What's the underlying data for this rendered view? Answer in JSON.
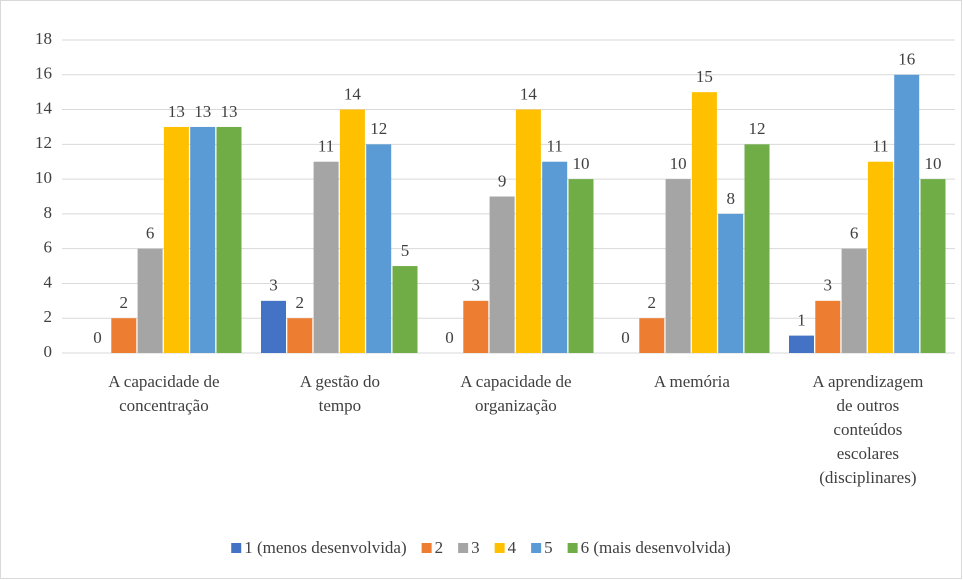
{
  "chart_data": {
    "type": "bar",
    "categories": [
      [
        "A capacidade de",
        "concentração"
      ],
      [
        "A gestão do",
        "tempo"
      ],
      [
        "A capacidade de",
        "organização"
      ],
      [
        "A memória"
      ],
      [
        "A aprendizagem",
        "de outros",
        "conteúdos",
        "escolares",
        "(disciplinares)"
      ]
    ],
    "series": [
      {
        "name": "1 (menos desenvolvida)",
        "color": "#4472c4",
        "values": [
          0,
          3,
          0,
          0,
          1
        ]
      },
      {
        "name": "2",
        "color": "#ed7d31",
        "values": [
          2,
          2,
          3,
          2,
          3
        ]
      },
      {
        "name": "3",
        "color": "#a5a5a5",
        "values": [
          6,
          11,
          9,
          10,
          6
        ]
      },
      {
        "name": "4",
        "color": "#ffc000",
        "values": [
          13,
          14,
          14,
          15,
          11
        ]
      },
      {
        "name": "5",
        "color": "#5b9bd5",
        "values": [
          13,
          12,
          11,
          8,
          16
        ]
      },
      {
        "name": "6 (mais desenvolvida)",
        "color": "#70ad47",
        "values": [
          13,
          5,
          10,
          12,
          10
        ]
      }
    ],
    "ylim": [
      0,
      18
    ],
    "yticks": [
      0,
      2,
      4,
      6,
      8,
      10,
      12,
      14,
      16,
      18
    ],
    "grid": true,
    "legend": "bottom"
  }
}
